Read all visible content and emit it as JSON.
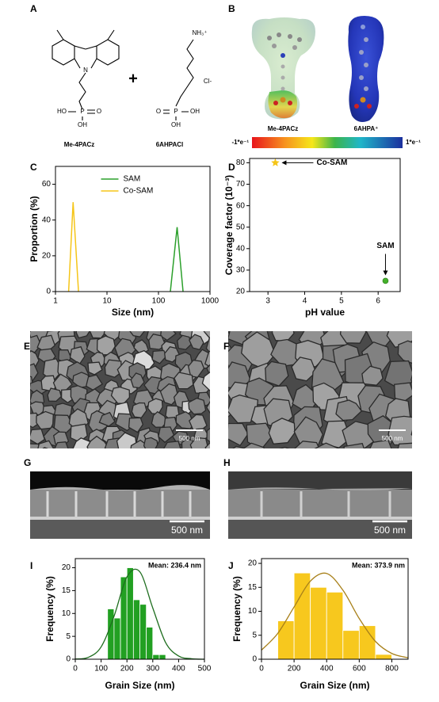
{
  "panel_labels": [
    "A",
    "B",
    "C",
    "D",
    "E",
    "F",
    "G",
    "H",
    "I",
    "J"
  ],
  "molecules": {
    "names": [
      "Me-4PACz",
      "6AHPACl"
    ],
    "plus": "+",
    "atoms": [
      "N",
      "HO",
      "P",
      "O",
      "OH",
      "NH₃⁺",
      "Cl-",
      "O",
      "P",
      "OH",
      "OH"
    ]
  },
  "esp": {
    "names": [
      "Me-4PACz",
      "6AHPA⁺"
    ],
    "scale": [
      "-1*e⁻¹",
      "1*e⁻¹"
    ]
  },
  "scale_bars": [
    "500 nm",
    "500 nm",
    "500 nm",
    "500 nm"
  ],
  "chart_data": [
    {
      "type": "line",
      "xlabel": "Size (nm)",
      "ylabel": "Proportion (%)",
      "xscale": "log",
      "xlim": [
        1,
        1000
      ],
      "xticks": [
        1,
        10,
        100,
        1000
      ],
      "ylim": [
        0,
        70
      ],
      "yticks": [
        0,
        20,
        40,
        60
      ],
      "legend": "upper center",
      "series": [
        {
          "name": "SAM",
          "color": "#2ca02c",
          "x": [
            170,
            230,
            300
          ],
          "values": [
            0,
            36,
            0
          ]
        },
        {
          "name": "Co-SAM",
          "color": "#f5c518",
          "x": [
            1.8,
            2.2,
            2.8
          ],
          "values": [
            0,
            50,
            0
          ]
        }
      ]
    },
    {
      "type": "scatter",
      "xlabel": "pH value",
      "ylabel": "Coverage factor (10⁻³)",
      "xlim": [
        2.5,
        6.6
      ],
      "xticks": [
        3,
        4,
        5,
        6
      ],
      "ylim": [
        20,
        82
      ],
      "yticks": [
        20,
        30,
        40,
        50,
        60,
        70,
        80
      ],
      "series": [
        {
          "name": "Co-SAM",
          "color": "#f5c518",
          "marker": "star",
          "x": [
            3.2
          ],
          "values": [
            80
          ]
        },
        {
          "name": "SAM",
          "color": "#44b02a",
          "marker": "circle",
          "x": [
            6.2
          ],
          "values": [
            25
          ]
        }
      ]
    },
    {
      "type": "histogram",
      "xlabel": "Grain Size (nm)",
      "ylabel": "Frequency (%)",
      "xlim": [
        0,
        500
      ],
      "xticks": [
        0,
        100,
        200,
        300,
        400,
        500
      ],
      "ylim": [
        0,
        22
      ],
      "yticks": [
        0,
        5,
        10,
        15,
        20
      ],
      "color": "#22a022",
      "annotation": "Mean: 236.4 nm",
      "bins": [
        125,
        150,
        175,
        200,
        225,
        250,
        275,
        300,
        325,
        350
      ],
      "values": [
        11,
        9,
        18,
        20,
        13,
        12,
        7,
        1,
        1
      ],
      "fit": {
        "color": "#1f6e1f",
        "x": [
          0,
          50,
          100,
          150,
          200,
          250,
          300,
          350,
          400,
          450,
          500
        ],
        "values": [
          0.04,
          0.4,
          2.7,
          9.4,
          18,
          19.1,
          11.2,
          3.6,
          0.7,
          0.1,
          0
        ]
      }
    },
    {
      "type": "histogram",
      "xlabel": "Grain Size (nm)",
      "ylabel": "Frequency (%)",
      "xlim": [
        0,
        900
      ],
      "xticks": [
        0,
        200,
        400,
        600,
        800
      ],
      "ylim": [
        0,
        21
      ],
      "yticks": [
        0,
        5,
        10,
        15,
        20
      ],
      "color": "#f7c81e",
      "annotation": "Mean: 373.9 nm",
      "bins": [
        100,
        200,
        300,
        400,
        500,
        600,
        700,
        800
      ],
      "values": [
        8,
        18,
        15,
        14,
        6,
        7,
        1
      ],
      "fit": {
        "color": "#a8801a",
        "x": [
          0,
          100,
          200,
          300,
          400,
          500,
          600,
          700,
          800,
          900
        ],
        "values": [
          1.9,
          5.4,
          10.9,
          16.3,
          17.9,
          14.4,
          8.5,
          3.7,
          1.2,
          0.3
        ]
      }
    }
  ]
}
